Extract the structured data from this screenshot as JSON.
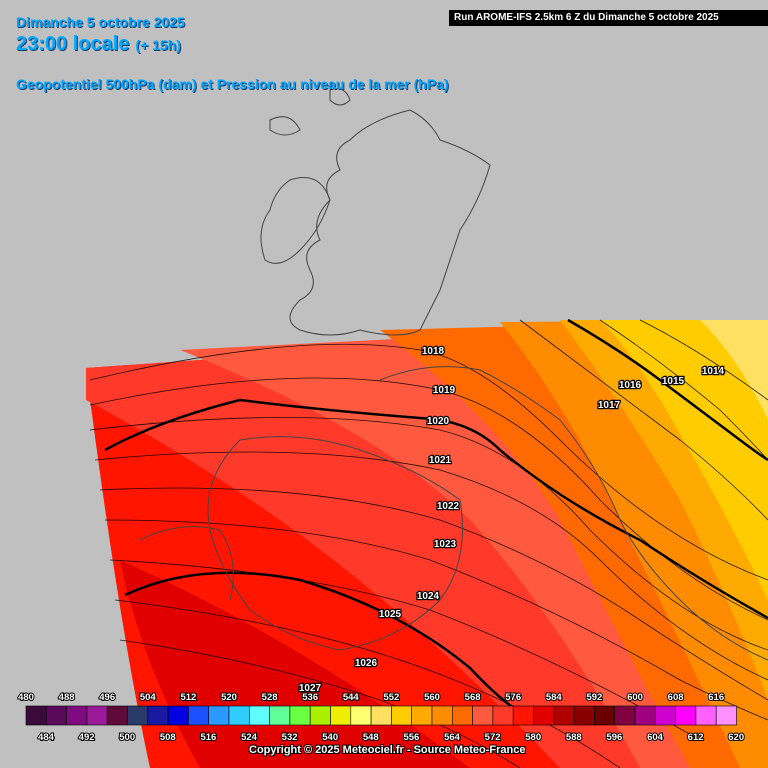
{
  "header": {
    "date": "Dimanche 5 octobre 2025",
    "time": "23:00 locale",
    "lead": "(+ 15h)",
    "product": "Geopotentiel 500hPa (dam) et Pression au niveau de la mer (hPa)",
    "run": "Run AROME-IFS 2.5km 6 Z du Dimanche 5 octobre 2025"
  },
  "isobars": [
    {
      "value": "1014"
    },
    {
      "value": "1015"
    },
    {
      "value": "1016"
    },
    {
      "value": "1017"
    },
    {
      "value": "1018"
    },
    {
      "value": "1019"
    },
    {
      "value": "1020"
    },
    {
      "value": "1021"
    },
    {
      "value": "1022"
    },
    {
      "value": "1023"
    },
    {
      "value": "1024"
    },
    {
      "value": "1025"
    },
    {
      "value": "1026"
    },
    {
      "value": "1027"
    }
  ],
  "legend": {
    "top_labels": [
      "480",
      "488",
      "496",
      "504",
      "512",
      "520",
      "528",
      "536",
      "544",
      "552",
      "560",
      "568",
      "576",
      "584",
      "592",
      "600",
      "608",
      "616"
    ],
    "bottom_labels": [
      "484",
      "492",
      "500",
      "508",
      "516",
      "524",
      "532",
      "540",
      "548",
      "556",
      "564",
      "572",
      "580",
      "588",
      "596",
      "604",
      "612",
      "620"
    ],
    "colors": [
      "#3a0a3a",
      "#5a0a5a",
      "#800a80",
      "#9a1a9a",
      "#600a3a",
      "#2a3a6a",
      "#1a1aa0",
      "#0000e0",
      "#1a50ff",
      "#2a9aff",
      "#30ccff",
      "#60ffff",
      "#60ff9a",
      "#6aff40",
      "#aaee00",
      "#eeee00",
      "#ffff70",
      "#ffe060",
      "#ffcc00",
      "#ffaa00",
      "#ff8c00",
      "#ff6a00",
      "#ff5a40",
      "#ff3a2a",
      "#ff1500",
      "#e00000",
      "#b00000",
      "#8a0000",
      "#6a0000",
      "#800040",
      "#a00080",
      "#d000d0",
      "#ff00ff",
      "#ff60ff",
      "#ff90ff"
    ]
  },
  "copyright": "Copyright © 2025 Meteociel.fr - Source Meteo-France"
}
